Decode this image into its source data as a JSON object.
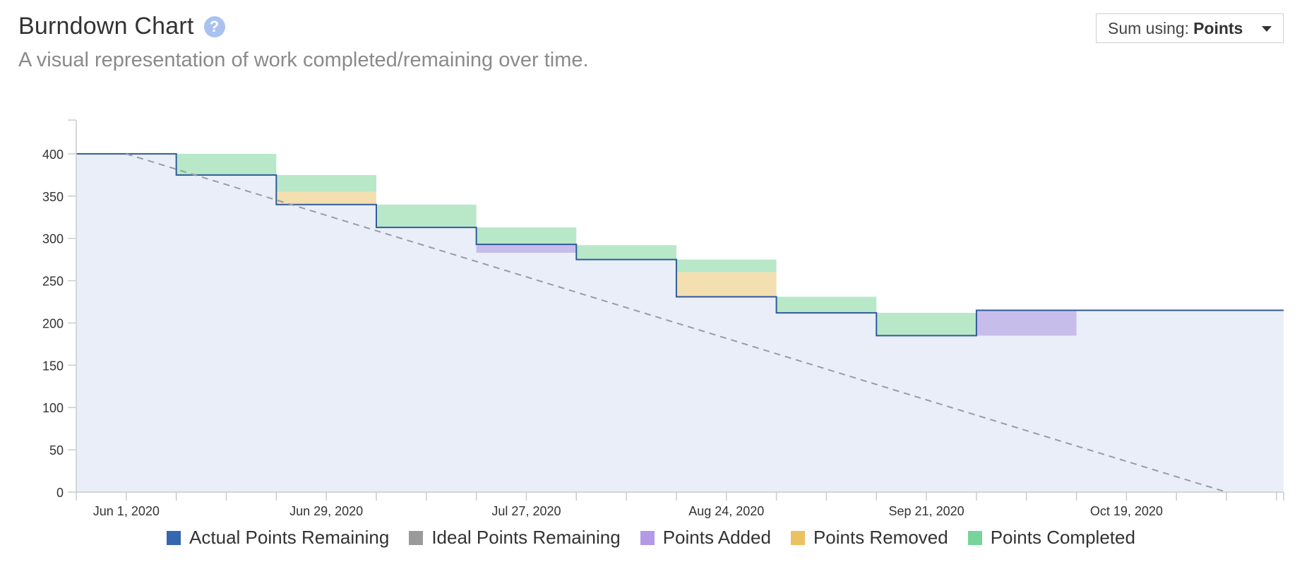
{
  "header": {
    "title": "Burndown Chart",
    "help_icon": "question-circle-icon",
    "subtitle": "A visual representation of work completed/remaining over time."
  },
  "sum_select": {
    "label": "Sum using:",
    "value": "Points",
    "icon": "caret-down-icon"
  },
  "colors": {
    "actual_line": "#2f5b9a",
    "remaining_fill": "#eaeef8",
    "ideal": "#9a9ca3",
    "added": "#c7bdeb",
    "removed": "#f4dfb0",
    "completed": "#b8e8c8",
    "legend_actual": "#3566b0",
    "legend_ideal": "#9a9a9a",
    "legend_added": "#b49ae6",
    "legend_removed": "#ecc162",
    "legend_completed": "#77d49a"
  },
  "chart_data": {
    "type": "area",
    "title": "",
    "xlabel": "",
    "ylabel": "",
    "x_tick_labels": [
      "Jun 1, 2020",
      "Jun 29, 2020",
      "Jul 27, 2020",
      "Aug 24, 2020",
      "Sep 21, 2020",
      "Oct 19, 2020"
    ],
    "y_ticks": [
      0,
      50,
      100,
      150,
      200,
      250,
      300,
      350,
      400
    ],
    "ylim": [
      0,
      440
    ],
    "xlim": [
      "2020-05-25",
      "2020-11-10"
    ],
    "grid": false,
    "legend_position": "bottom",
    "legend": [
      "Actual Points Remaining",
      "Ideal Points Remaining",
      "Points Added",
      "Points Removed",
      "Points Completed"
    ],
    "actual_points_remaining": [
      {
        "start": "2020-05-25",
        "end": "2020-06-08",
        "value": 400
      },
      {
        "start": "2020-06-08",
        "end": "2020-06-22",
        "value": 375
      },
      {
        "start": "2020-06-22",
        "end": "2020-07-06",
        "value": 340
      },
      {
        "start": "2020-07-06",
        "end": "2020-07-20",
        "value": 313
      },
      {
        "start": "2020-07-20",
        "end": "2020-08-03",
        "value": 293
      },
      {
        "start": "2020-08-03",
        "end": "2020-08-17",
        "value": 275
      },
      {
        "start": "2020-08-17",
        "end": "2020-08-31",
        "value": 231
      },
      {
        "start": "2020-08-31",
        "end": "2020-09-14",
        "value": 212
      },
      {
        "start": "2020-09-14",
        "end": "2020-09-28",
        "value": 185
      },
      {
        "start": "2020-09-28",
        "end": "2020-11-10",
        "value": 215
      }
    ],
    "ideal_points_remaining": [
      {
        "x": "2020-06-01",
        "y": 400
      },
      {
        "x": "2020-11-02",
        "y": 0
      }
    ],
    "points_completed": [
      {
        "start": "2020-06-08",
        "end": "2020-06-22",
        "from": 375,
        "to": 400
      },
      {
        "start": "2020-06-22",
        "end": "2020-07-06",
        "from": 355,
        "to": 375
      },
      {
        "start": "2020-07-06",
        "end": "2020-07-20",
        "from": 313,
        "to": 340
      },
      {
        "start": "2020-07-20",
        "end": "2020-08-03",
        "from": 293,
        "to": 313
      },
      {
        "start": "2020-08-03",
        "end": "2020-08-17",
        "from": 275,
        "to": 292
      },
      {
        "start": "2020-08-17",
        "end": "2020-08-31",
        "from": 260,
        "to": 275
      },
      {
        "start": "2020-08-31",
        "end": "2020-09-14",
        "from": 212,
        "to": 231
      },
      {
        "start": "2020-09-14",
        "end": "2020-09-28",
        "from": 185,
        "to": 212
      }
    ],
    "points_removed": [
      {
        "start": "2020-06-22",
        "end": "2020-07-06",
        "from": 340,
        "to": 355
      },
      {
        "start": "2020-08-17",
        "end": "2020-08-31",
        "from": 231,
        "to": 260
      }
    ],
    "points_added": [
      {
        "start": "2020-07-20",
        "end": "2020-08-03",
        "from": 283,
        "to": 293
      },
      {
        "start": "2020-09-28",
        "end": "2020-10-12",
        "from": 185,
        "to": 215
      }
    ]
  }
}
